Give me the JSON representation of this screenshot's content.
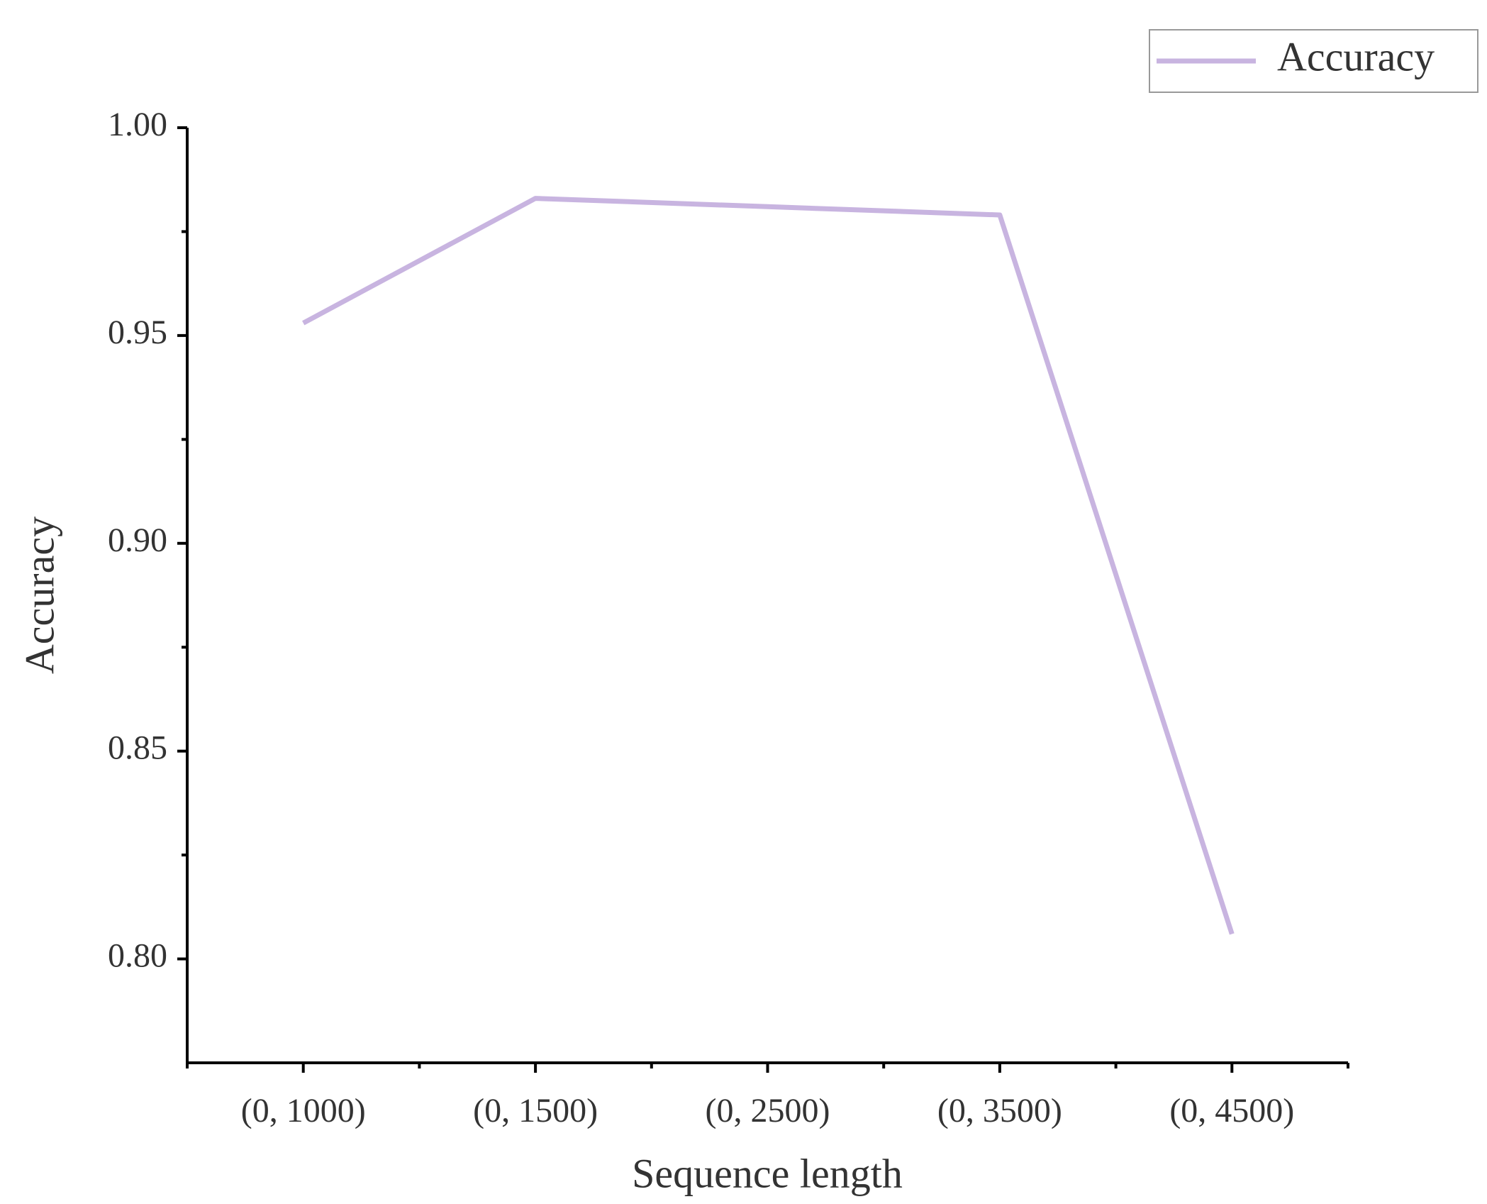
{
  "chart_data": {
    "type": "line",
    "x_label": "Sequence length",
    "y_label": "Accuracy",
    "categories": [
      "(0, 1000)",
      "(0, 1500)",
      "(0, 2500)",
      "(0, 3500)",
      "(0, 4500)"
    ],
    "series": [
      {
        "name": "Accuracy",
        "color": "#c8b4e0",
        "values": [
          0.953,
          0.983,
          0.981,
          0.979,
          0.806
        ]
      }
    ],
    "ylim": [
      0.775,
      1.0
    ],
    "yticks": [
      {
        "value": 0.8,
        "label": "0.80"
      },
      {
        "value": 0.85,
        "label": "0.85"
      },
      {
        "value": 0.9,
        "label": "0.90"
      },
      {
        "value": 0.95,
        "label": "0.95"
      },
      {
        "value": 1.0,
        "label": "1.00"
      }
    ],
    "yminor_ticks": [
      0.825,
      0.875,
      0.925,
      0.975
    ],
    "legend": "top-right"
  }
}
